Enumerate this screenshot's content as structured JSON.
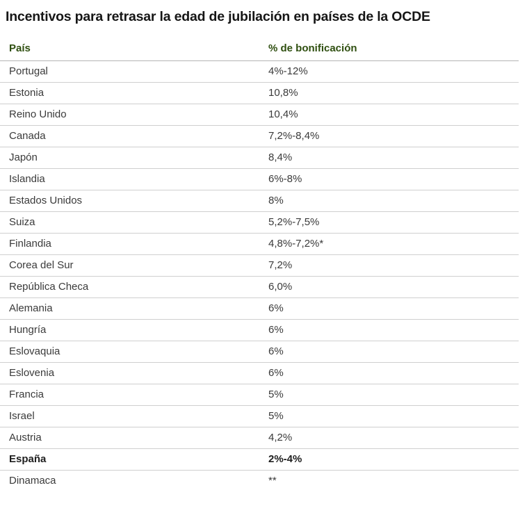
{
  "title": "Incentivos para retrasar la edad de jubilación en países de la OCDE",
  "colors": {
    "title_text": "#161616",
    "header_text": "#2f4f10",
    "row_text": "#3a3a3a",
    "row_border": "#cfcfcf",
    "header_border": "#b3b3b3",
    "background": "#ffffff"
  },
  "chart_data": {
    "type": "table",
    "title": "Incentivos para retrasar la edad de jubilación en países de la OCDE",
    "columns": [
      {
        "key": "country",
        "label": "País"
      },
      {
        "key": "value",
        "label": "% de bonificación"
      }
    ],
    "highlighted_row": "España",
    "rows": [
      {
        "country": "Portugal",
        "value": "4%-12%",
        "bold": false
      },
      {
        "country": "Estonia",
        "value": "10,8%",
        "bold": false
      },
      {
        "country": "Reino Unido",
        "value": "10,4%",
        "bold": false
      },
      {
        "country": "Canada",
        "value": "7,2%-8,4%",
        "bold": false
      },
      {
        "country": "Japón",
        "value": "8,4%",
        "bold": false
      },
      {
        "country": "Islandia",
        "value": "6%-8%",
        "bold": false
      },
      {
        "country": "Estados Unidos",
        "value": "8%",
        "bold": false
      },
      {
        "country": "Suiza",
        "value": "5,2%-7,5%",
        "bold": false
      },
      {
        "country": "Finlandia",
        "value": "4,8%-7,2%*",
        "bold": false
      },
      {
        "country": "Corea del Sur",
        "value": "7,2%",
        "bold": false
      },
      {
        "country": "República Checa",
        "value": "6,0%",
        "bold": false
      },
      {
        "country": "Alemania",
        "value": "6%",
        "bold": false
      },
      {
        "country": "Hungría",
        "value": "6%",
        "bold": false
      },
      {
        "country": "Eslovaquia",
        "value": "6%",
        "bold": false
      },
      {
        "country": "Eslovenia",
        "value": "6%",
        "bold": false
      },
      {
        "country": "Francia",
        "value": "5%",
        "bold": false
      },
      {
        "country": "Israel",
        "value": "5%",
        "bold": false
      },
      {
        "country": "Austria",
        "value": "4,2%",
        "bold": false
      },
      {
        "country": "España",
        "value": "2%-4%",
        "bold": true
      },
      {
        "country": "Dinamaca",
        "value": "**",
        "bold": false
      }
    ]
  }
}
